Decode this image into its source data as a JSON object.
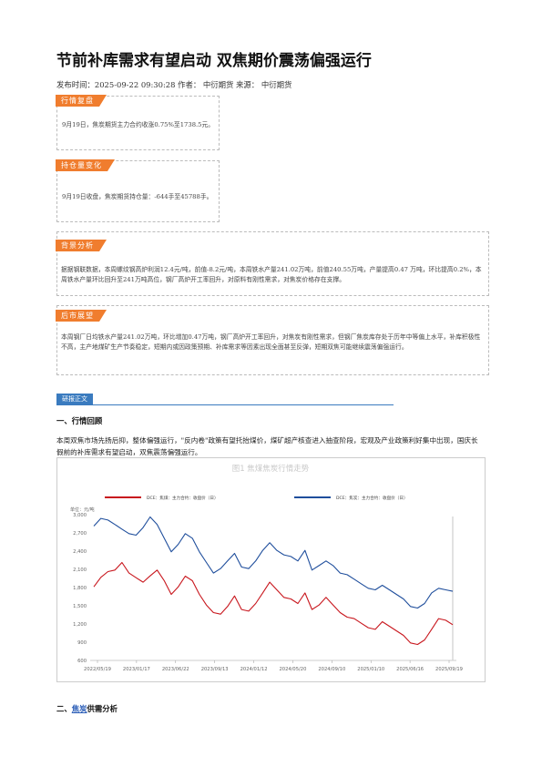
{
  "article": {
    "title": "节前补库需求有望启动 双焦期价震荡偏强运行",
    "meta": "发布时间：2025-09-22 09:30:28 作者： 中衍期货 来源： 中衍期货"
  },
  "boxes": {
    "review": {
      "tag": "行情复盘",
      "text": "9月19日，焦炭期货主力合约收涨0.75%至1738.5元。"
    },
    "position": {
      "tag": "持仓量变化",
      "text": "9月19日收盘，焦炭期货持仓量：-644手至45788手。"
    },
    "background": {
      "tag": "背景分析",
      "text": "据据钢联数据，本周螺纹钢高炉利润12.4元/吨，前值-8.2元/吨，本周铁水产量241.02万吨，前值240.55万吨，产量提高0.47 万吨，环比提高0.2%，本周铁水产量环比回升至241万吨高位，钢厂高炉开工率回升，对原料有刚性需求，对焦炭价格存在支撑。"
    },
    "outlook": {
      "tag": "后市展望",
      "text": "本周钢厂日均铁水产量241.02万吨，环比增加0.47万吨，钢厂高炉开工率回升，对焦炭有刚性需求，但钢厂焦炭库存处于历年中等偏上水平，补库积极性不高，主产地煤矿生产节奏稳定，短期内或因政策预期、补库需求等因素出现全面甚至反弹，短期双焦可能继续震荡偏强运行。"
    }
  },
  "report": {
    "tag": "研报正文",
    "section1": "一、行情回顾",
    "para1": "本周双焦市场先扬后抑，整体偏强运行，\"反内卷\"政策有望托抬煤价，煤矿超产核查进入抽查阶段，宏观及产业政策利好集中出现，国庆长假前的补库需求有望启动，双焦震荡偏强运行。",
    "section2_prefix": "二、",
    "section2_link": "焦炭",
    "section2_suffix": "供需分析"
  },
  "chart_data": {
    "type": "line",
    "title": "图1 焦煤焦炭行情走势",
    "ylabel": "单位：元/吨",
    "ylim": [
      600,
      3000
    ],
    "yticks": [
      600,
      900,
      1200,
      1500,
      1800,
      2100,
      2400,
      2700,
      3000
    ],
    "xticks": [
      "2022/05/19",
      "2023/01/17",
      "2023/06/22",
      "2023/09/13",
      "2024/01/12",
      "2024/05/20",
      "2024/09/10",
      "2025/01/10",
      "2025/06/16",
      "2025/09/19"
    ],
    "series": [
      {
        "name": "DCE：焦煤：主力合约：收盘价（日）",
        "color": "#c8161d",
        "values": [
          1800,
          1980,
          2050,
          2100,
          2200,
          2050,
          1950,
          1900,
          1980,
          2100,
          1900,
          1700,
          1800,
          2000,
          1900,
          1700,
          1500,
          1400,
          1350,
          1500,
          1650,
          1450,
          1400,
          1550,
          1700,
          1900,
          1750,
          1650,
          1600,
          1550,
          1700,
          1450,
          1500,
          1650,
          1500,
          1400,
          1300,
          1300,
          1200,
          1150,
          1100,
          1250,
          1150,
          1100,
          1000,
          900,
          850,
          950,
          1100,
          1300,
          1250,
          1200
        ]
      },
      {
        "name": "DCE：焦炭：主力合约：收盘价（日）",
        "color": "#1f4e9c",
        "values": [
          2800,
          2950,
          2900,
          2850,
          2750,
          2700,
          2650,
          2800,
          2950,
          2850,
          2600,
          2400,
          2500,
          2700,
          2600,
          2400,
          2200,
          2050,
          2100,
          2250,
          2350,
          2150,
          2100,
          2250,
          2400,
          2550,
          2400,
          2350,
          2300,
          2250,
          2400,
          2100,
          2150,
          2250,
          2150,
          2050,
          2000,
          1950,
          1850,
          1800,
          1750,
          1850,
          1750,
          1700,
          1600,
          1500,
          1450,
          1550,
          1700,
          1800,
          1750,
          1750
        ]
      }
    ],
    "legend": "top-center"
  }
}
